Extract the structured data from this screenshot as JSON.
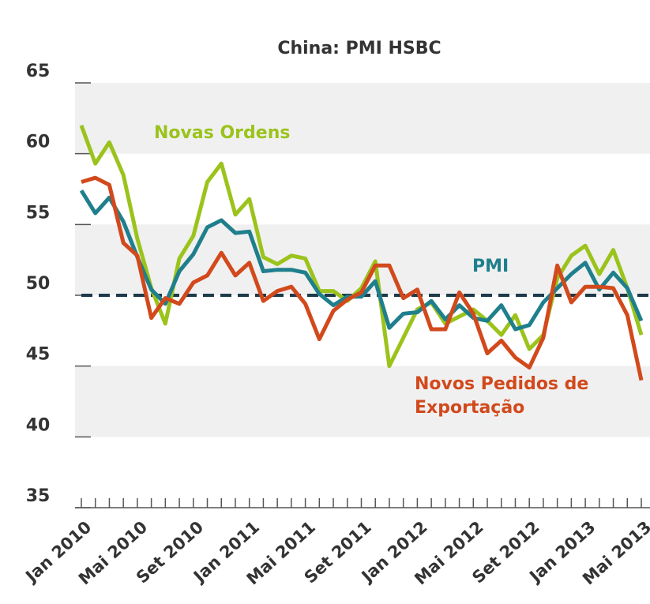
{
  "chart_data": {
    "type": "line",
    "title": "China: PMI HSBC",
    "categories": [
      "Jan 2010",
      null,
      null,
      null,
      "Mai 2010",
      null,
      null,
      null,
      "Set 2010",
      null,
      null,
      null,
      "Jan 2011",
      null,
      null,
      null,
      "Mai 2011",
      null,
      null,
      null,
      "Set 2011",
      null,
      null,
      null,
      "Jan 2012",
      null,
      null,
      null,
      "Mai 2012",
      null,
      null,
      null,
      "Set 2012",
      null,
      null,
      null,
      "Jan 2013",
      null,
      null,
      null,
      "Mai 2013"
    ],
    "series": [
      {
        "name": "Novas Ordens",
        "color": "#9bc31c",
        "values": [
          62,
          59.3,
          60.8,
          58.5,
          54,
          50.5,
          48,
          52.6,
          54.2,
          58,
          59.3,
          55.7,
          56.8,
          52.7,
          52.2,
          52.8,
          52.6,
          50.3,
          50.3,
          49.6,
          50.5,
          52.4,
          45,
          47,
          49,
          49.5,
          48,
          48.5,
          49,
          48.2,
          47.2,
          48.6,
          46.2,
          47.2,
          51.2,
          52.8,
          53.5,
          51.5,
          53.2,
          50.5,
          47.2
        ]
      },
      {
        "name": "PMI",
        "color": "#1f7f8c",
        "values": [
          57.4,
          55.8,
          56.9,
          55.2,
          52.7,
          50.4,
          49.4,
          51.7,
          52.9,
          54.8,
          55.3,
          54.4,
          54.5,
          51.7,
          51.8,
          51.8,
          51.6,
          50.1,
          49.3,
          49.9,
          49.9,
          51.0,
          47.7,
          48.7,
          48.8,
          49.6,
          48.3,
          49.3,
          48.4,
          48.2,
          49.3,
          47.6,
          47.9,
          49.5,
          50.5,
          51.5,
          52.3,
          50.4,
          51.6,
          50.5,
          48.2
        ]
      },
      {
        "name": "Novos Pedidos de Exportação",
        "color": "#d2491c",
        "values": [
          58,
          58.3,
          57.8,
          53.7,
          52.8,
          48.4,
          49.8,
          49.4,
          50.9,
          51.4,
          53,
          51.4,
          52.3,
          49.6,
          50.3,
          50.6,
          49.4,
          46.9,
          48.9,
          49.7,
          50.2,
          52.1,
          52.1,
          49.8,
          50.4,
          47.6,
          47.6,
          50.2,
          48.7,
          45.9,
          46.8,
          45.6,
          44.9,
          47,
          52.1,
          49.5,
          50.6,
          50.6,
          50.5,
          48.6,
          44
        ]
      }
    ],
    "reference_line": 50,
    "ylim": [
      35,
      65
    ],
    "yticks": [
      35,
      40,
      45,
      50,
      55,
      60,
      65
    ]
  }
}
